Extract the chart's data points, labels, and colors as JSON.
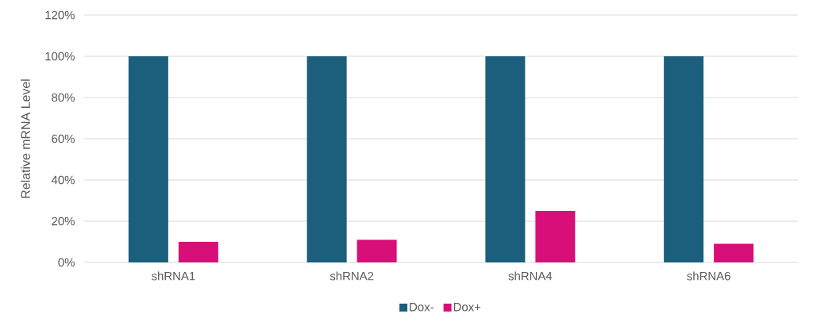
{
  "chart_data": {
    "type": "bar",
    "ylabel": "Relative mRNA Level",
    "categories": [
      "shRNA1",
      "shRNA2",
      "shRNA4",
      "shRNA6"
    ],
    "series": [
      {
        "name": "Dox-",
        "color": "#1b5f7c",
        "values": [
          100,
          100,
          100,
          100
        ]
      },
      {
        "name": "Dox+",
        "color": "#d80f78",
        "values": [
          10,
          11,
          25,
          9
        ]
      }
    ],
    "ylim": [
      0,
      120
    ],
    "yticks": [
      {
        "value": 0,
        "label": "0%"
      },
      {
        "value": 20,
        "label": "20%"
      },
      {
        "value": 40,
        "label": "40%"
      },
      {
        "value": 60,
        "label": "60%"
      },
      {
        "value": 80,
        "label": "80%"
      },
      {
        "value": 100,
        "label": "100%"
      },
      {
        "value": 120,
        "label": "120%"
      }
    ],
    "grid": "y",
    "legend": "bottom"
  }
}
